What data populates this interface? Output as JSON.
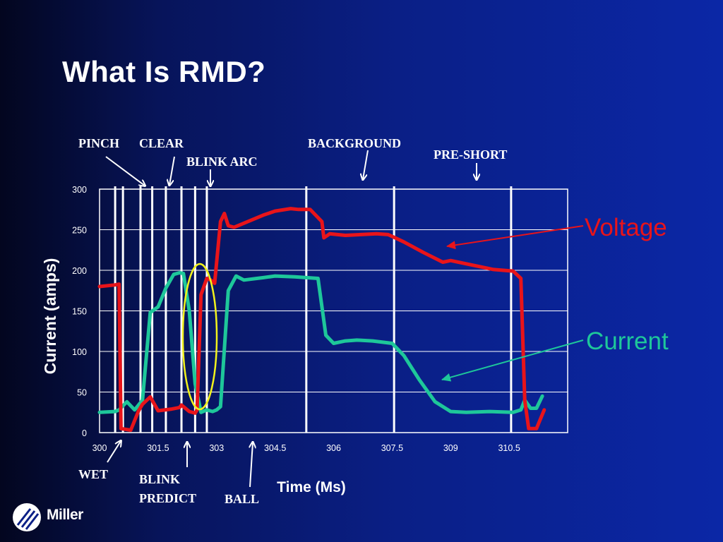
{
  "slide": {
    "title": "What Is RMD?"
  },
  "logo": {
    "text": "Miller",
    "icon": "miller-logo-icon"
  },
  "chart_data": {
    "type": "line",
    "ylabel": "Current (amps)",
    "xlabel": "Time (Ms)",
    "ylim": [
      0,
      300
    ],
    "xlim": [
      300,
      312
    ],
    "yticks": [
      "0",
      "50",
      "100",
      "150",
      "200",
      "250",
      "300"
    ],
    "xticks": [
      "300",
      "301.5",
      "303",
      "304.5",
      "306",
      "307.5",
      "309",
      "310.5"
    ],
    "grid": true,
    "series": [
      {
        "name": "Voltage",
        "color": "#e8141a",
        "x": [
          300.0,
          300.4,
          300.5,
          300.55,
          300.8,
          301.0,
          301.1,
          301.3,
          301.5,
          301.85,
          302.05,
          302.1,
          302.3,
          302.45,
          302.5,
          302.6,
          302.75,
          302.85,
          302.95,
          303.1,
          303.2,
          303.3,
          303.45,
          303.7,
          303.9,
          304.2,
          304.5,
          304.9,
          305.1,
          305.4,
          305.7,
          305.75,
          305.9,
          306.3,
          307.1,
          307.4,
          307.8,
          308.3,
          308.8,
          309.0,
          309.4,
          309.8,
          310.1,
          310.6,
          310.8,
          310.9,
          311.0,
          311.2,
          311.4
        ],
        "y": [
          180,
          182,
          183,
          5,
          3,
          27,
          35,
          44,
          27,
          29,
          31,
          34,
          26,
          24,
          28,
          170,
          190,
          188,
          184,
          260,
          270,
          255,
          253,
          258,
          262,
          268,
          273,
          276,
          275,
          275,
          260,
          240,
          245,
          243,
          245,
          244,
          235,
          222,
          210,
          212,
          208,
          204,
          201,
          199,
          190,
          40,
          5,
          5,
          28
        ]
      },
      {
        "name": "Current",
        "color": "#1ec79a",
        "x": [
          300.0,
          300.4,
          300.5,
          300.7,
          300.9,
          301.1,
          301.3,
          301.5,
          301.7,
          301.9,
          302.05,
          302.15,
          302.3,
          302.45,
          302.6,
          302.75,
          302.9,
          303.0,
          303.1,
          303.3,
          303.5,
          303.7,
          304.2,
          304.5,
          305.0,
          305.6,
          305.8,
          306.0,
          306.3,
          306.6,
          307.0,
          307.5,
          307.8,
          308.2,
          308.6,
          309.0,
          309.4,
          310.0,
          310.6,
          310.8,
          310.9,
          311.05,
          311.2,
          311.35
        ],
        "y": [
          25,
          26,
          28,
          38,
          28,
          40,
          148,
          155,
          178,
          195,
          197,
          196,
          150,
          60,
          25,
          28,
          26,
          28,
          32,
          175,
          193,
          188,
          191,
          193,
          192,
          190,
          120,
          110,
          113,
          114,
          113,
          110,
          95,
          65,
          38,
          26,
          25,
          26,
          25,
          28,
          40,
          30,
          30,
          45
        ]
      }
    ],
    "legend": [
      {
        "label": "Voltage",
        "color": "#e8141a",
        "placement": "right"
      },
      {
        "label": "Current",
        "color": "#1ec79a",
        "placement": "right"
      }
    ],
    "markers": [
      300.4,
      300.6,
      301.05,
      301.35,
      301.7,
      302.1,
      302.45,
      302.75,
      305.3,
      307.55,
      310.55
    ],
    "annotations_top": [
      "PINCH",
      "CLEAR",
      "BLINK ARC",
      "BACKGROUND",
      "PRE-SHORT"
    ],
    "annotations_bottom": [
      "WET",
      "BLINK",
      "PREDICT",
      "BALL"
    ]
  }
}
